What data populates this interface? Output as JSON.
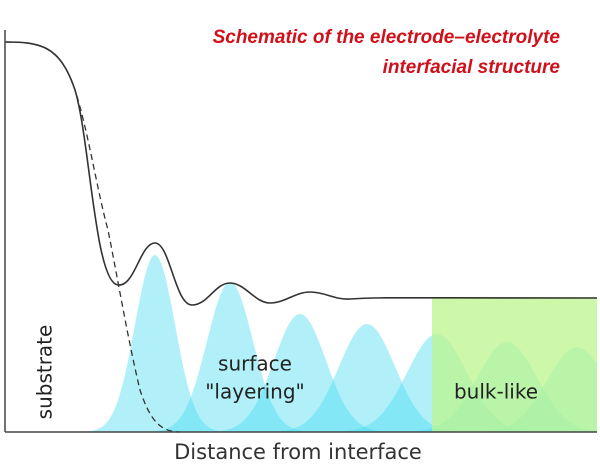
{
  "title_lines": [
    "Schematic of the electrode–electrolyte",
    "interfacial structure"
  ],
  "labels": {
    "substrate": "substrate",
    "surface_line1": "surface",
    "surface_line2": "\"layering\"",
    "bulk": "bulk-like"
  },
  "x_axis_label": "Distance from interface"
}
